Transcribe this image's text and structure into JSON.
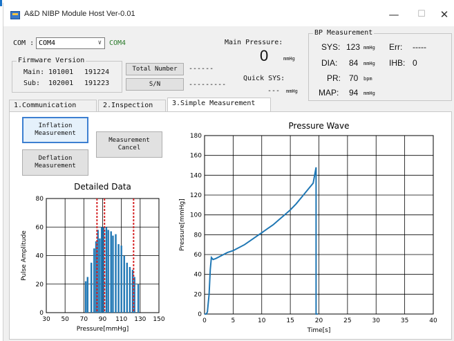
{
  "window": {
    "title": "A&D NIBP Module Host Ver-0.01",
    "minimize": "—",
    "maximize": "☐",
    "close": "✕"
  },
  "com": {
    "label": "COM :",
    "selected": "COM4",
    "status": "COM4",
    "status_color": "#2a7a2a"
  },
  "firmware": {
    "group_title": "Firmware Version",
    "main_label": "Main:",
    "main_version": "101001",
    "main_date": "191224",
    "sub_label": "Sub:",
    "sub_version": "102001",
    "sub_date": "191223"
  },
  "counters": {
    "total_button": "Total Number",
    "total_value": "------",
    "sn_button": "S/N",
    "sn_value": "---------"
  },
  "pressure": {
    "label": "Main Pressure:",
    "value": "0",
    "unit": "mmHg",
    "quick_label": "Quick SYS:",
    "quick_value": "---",
    "quick_unit": "mmHg"
  },
  "bp": {
    "group_title": "BP Measurement",
    "sys_label": "SYS:",
    "sys_value": "123",
    "sys_unit": "mmHg",
    "dia_label": "DIA:",
    "dia_value": "84",
    "dia_unit": "mmHg",
    "pr_label": "PR:",
    "pr_value": "70",
    "pr_unit": "bpm",
    "map_label": "MAP:",
    "map_value": "94",
    "map_unit": "mmHg",
    "err_label": "Err:",
    "err_value": "-----",
    "ihb_label": "IHB:",
    "ihb_value": "0"
  },
  "tabs": [
    {
      "label": "1.Communication"
    },
    {
      "label": "2.Inspection"
    },
    {
      "label": "3.Simple Measurement"
    }
  ],
  "buttons": {
    "inflation": "Inflation\nMeasurement",
    "deflation": "Deflation\nMeasurement",
    "cancel": "Measurement\nCancel"
  },
  "colors": {
    "series": "#1f77b4",
    "marker": "#d62728",
    "accent": "#1a73c8"
  },
  "chart_data": [
    {
      "type": "bar",
      "title": "Detailed Data",
      "xlabel": "Pressure[mmHg]",
      "ylabel": "Pulse Amplitude",
      "xlim": [
        30,
        150
      ],
      "ylim": [
        0,
        80
      ],
      "xticks": [
        30,
        50,
        70,
        90,
        110,
        130,
        150
      ],
      "yticks": [
        0,
        20,
        40,
        60,
        80
      ],
      "grid": true,
      "x": [
        72,
        74,
        78,
        81,
        83,
        85,
        87,
        89,
        91,
        94,
        96,
        99,
        101,
        104,
        107,
        110,
        113,
        116,
        119,
        122,
        124,
        128
      ],
      "values": [
        22,
        25,
        35,
        45,
        50,
        58,
        52,
        60,
        60,
        60,
        58,
        57,
        54,
        55,
        48,
        47,
        40,
        35,
        32,
        30,
        25,
        20
      ],
      "markers_x": [
        84,
        92,
        123
      ]
    },
    {
      "type": "line",
      "title": "Pressure Wave",
      "xlabel": "Time[s]",
      "ylabel": "Pressure[mmHg]",
      "xlim": [
        0,
        40
      ],
      "ylim": [
        0,
        180
      ],
      "xticks": [
        0,
        5,
        10,
        15,
        20,
        25,
        30,
        35,
        40
      ],
      "yticks": [
        0,
        20,
        40,
        60,
        80,
        100,
        120,
        140,
        160,
        180
      ],
      "grid": true,
      "x": [
        0,
        0.3,
        0.5,
        0.8,
        1.0,
        1.2,
        1.5,
        2,
        3,
        4,
        5,
        6,
        7,
        8,
        9,
        10,
        11,
        12,
        13,
        14,
        15,
        16,
        17,
        18,
        19,
        19.5,
        19.5,
        19.8
      ],
      "y": [
        0,
        0,
        2,
        20,
        45,
        57,
        55,
        56,
        59,
        62,
        64,
        67,
        70,
        74,
        78,
        82,
        86,
        90,
        95,
        100,
        105,
        111,
        118,
        125,
        132,
        148,
        0,
        0
      ]
    }
  ]
}
